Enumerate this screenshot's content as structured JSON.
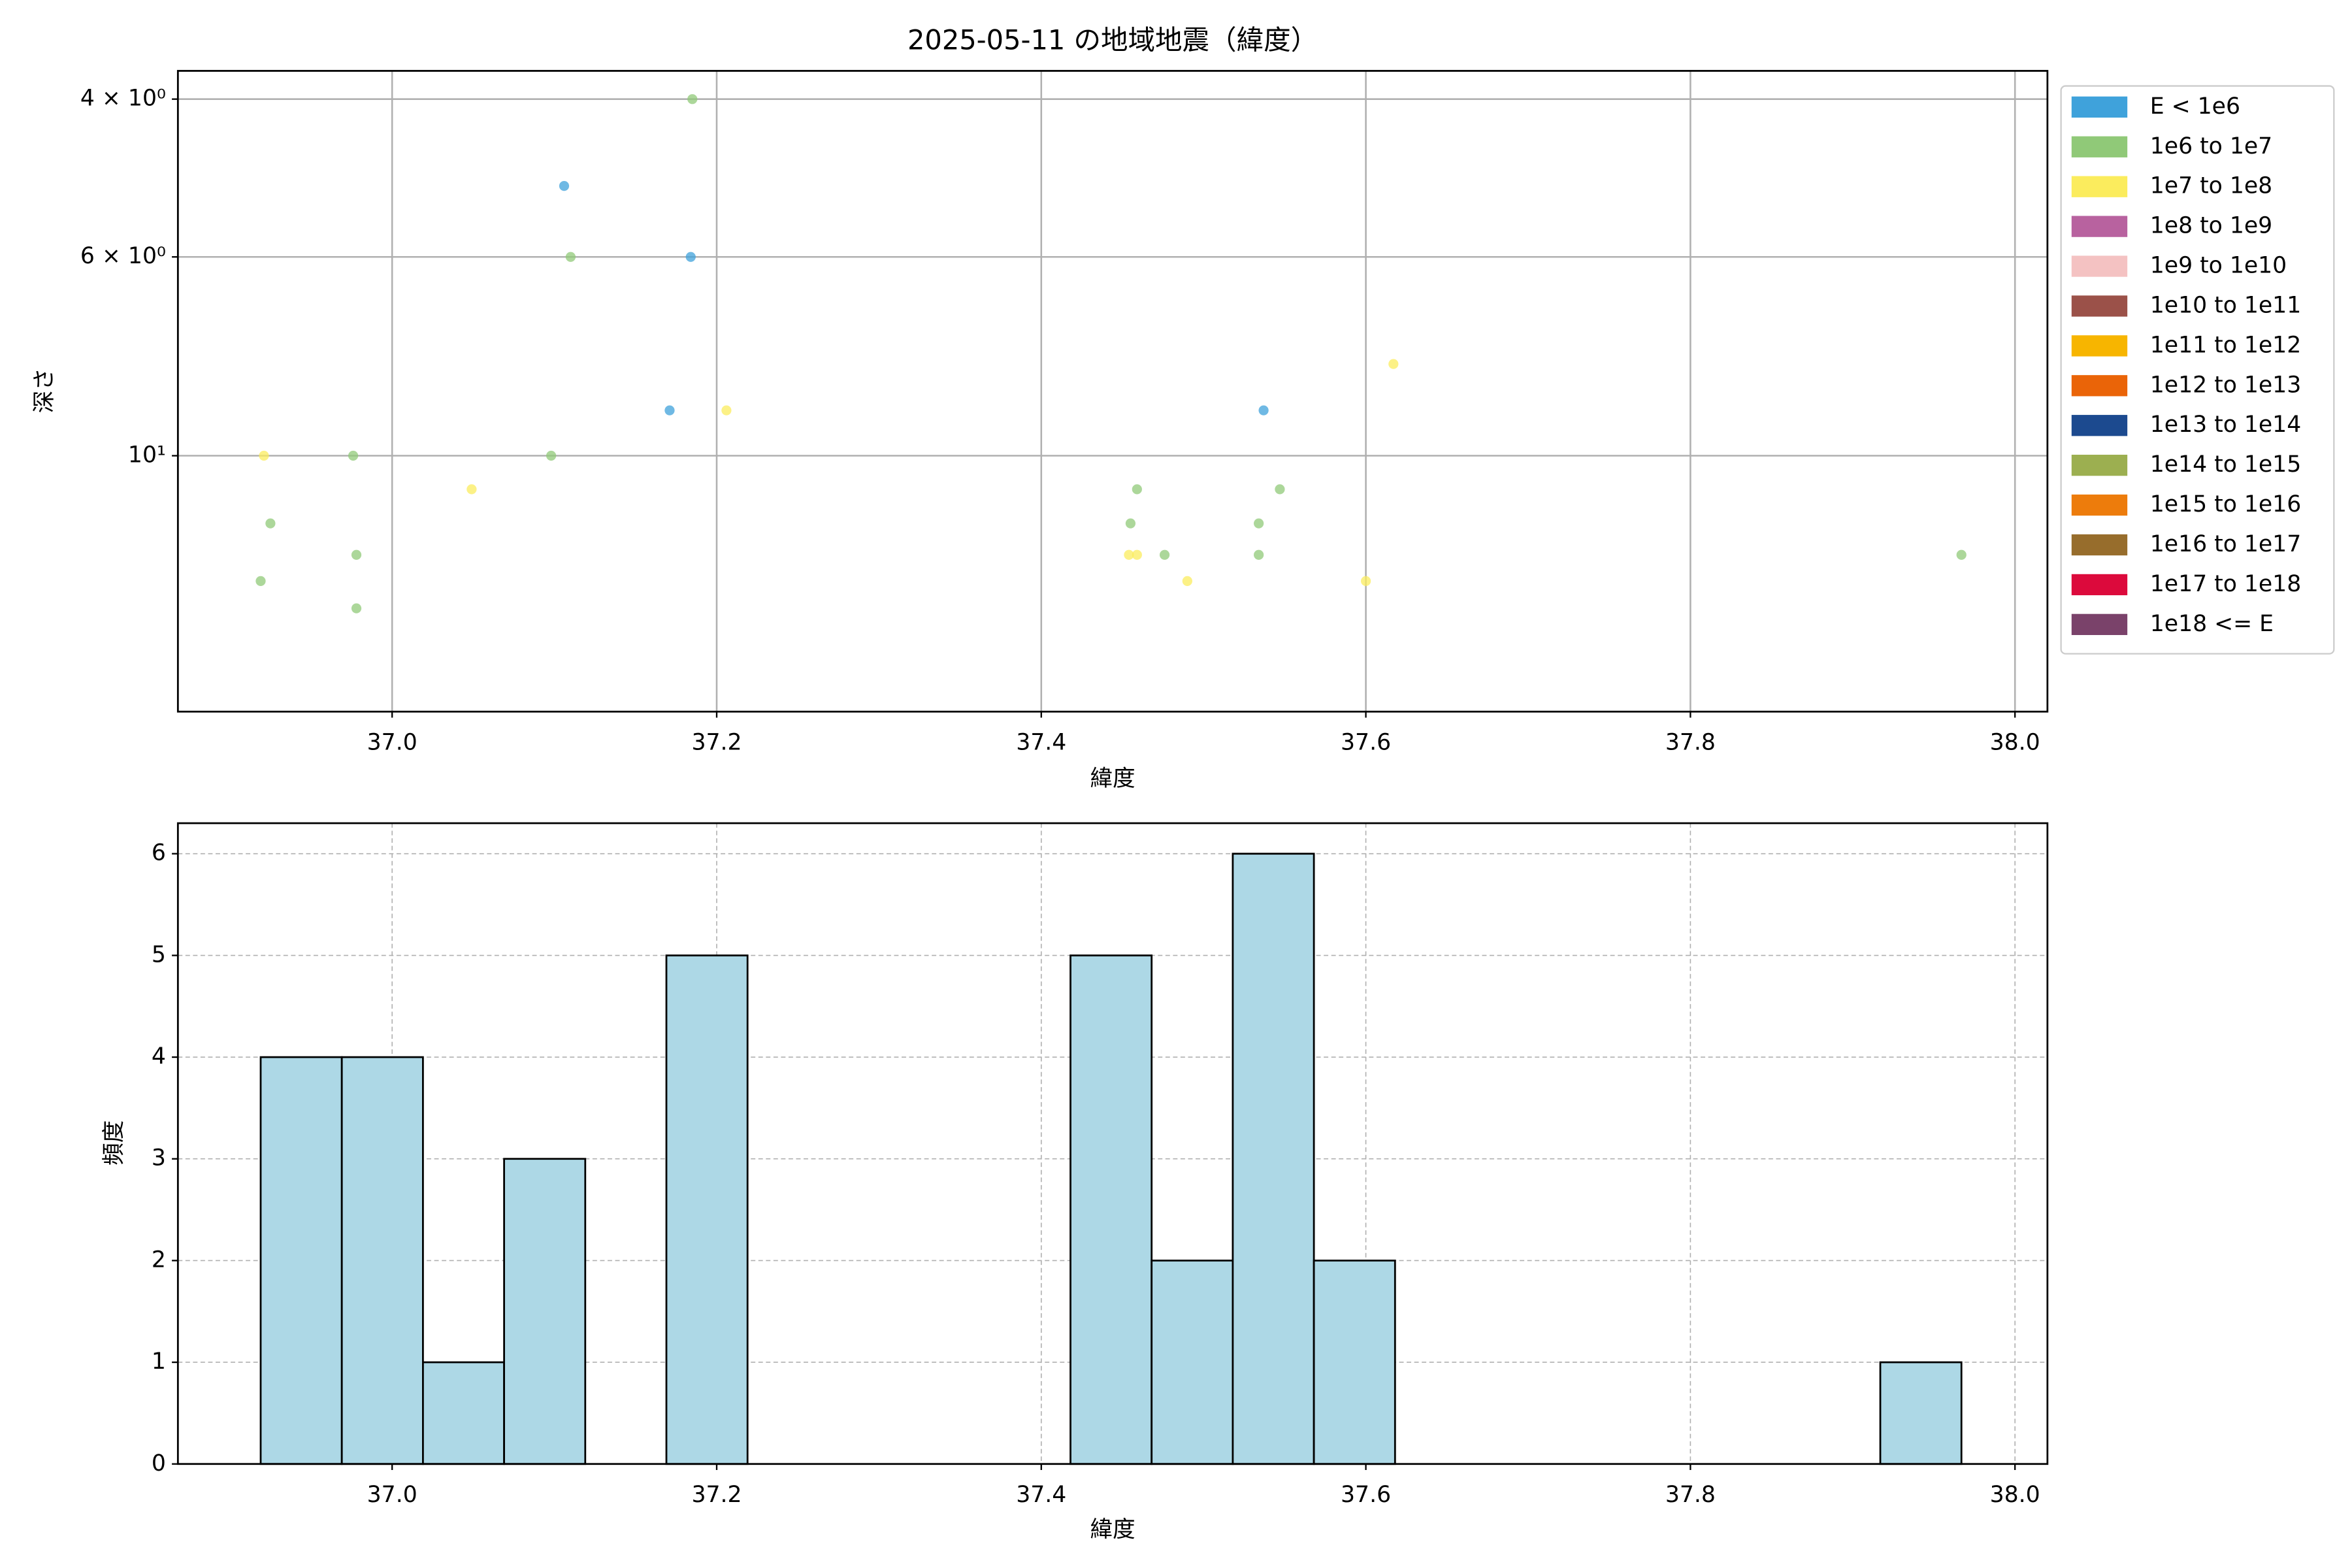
{
  "chart_data": [
    {
      "type": "scatter",
      "title": "2025-05-11 の地域地震（緯度）",
      "xlabel": "緯度",
      "ylabel": "深さ",
      "xlim": [
        36.868,
        38.02
      ],
      "ylim": [
        3.72,
        19.3
      ],
      "ylog": true,
      "y_inverted": true,
      "grid": true,
      "legend": "outside right",
      "xticks": [
        {
          "value": 37,
          "label": "37.0"
        },
        37.2,
        37.4,
        37.6,
        37.8,
        {
          "value": 38,
          "label": "38.0"
        }
      ],
      "yticks": [
        {
          "value": 4,
          "label": "4 × 10⁰"
        },
        {
          "value": 6,
          "label": "6 × 10⁰"
        },
        {
          "value": 10,
          "label": "10¹"
        }
      ],
      "series": [
        {
          "name": "E < 1e6",
          "color": "#3fa2db",
          "x": [
            37.106,
            37.171,
            37.184,
            37.537
          ],
          "values": [
            5.0,
            8.9,
            6,
            8.9
          ]
        },
        {
          "name": "1e6 to 1e7",
          "color": "#90c978",
          "x": [
            36.976,
            36.925,
            36.919,
            36.978,
            36.978,
            37.098,
            37.11,
            37.185,
            37.455,
            37.459,
            37.476,
            37.534,
            37.534,
            37.547,
            37.967
          ],
          "values": [
            10,
            11.9,
            13.8,
            12.9,
            14.8,
            10,
            6,
            4,
            11.9,
            10.9,
            12.9,
            11.9,
            12.9,
            10.9,
            12.9
          ]
        },
        {
          "name": "1e7 to 1e8",
          "color": "#fbec5d",
          "x": [
            36.921,
            37.049,
            37.206,
            37.454,
            37.459,
            37.49,
            37.6,
            37.617
          ],
          "values": [
            10,
            10.9,
            8.9,
            12.9,
            12.9,
            13.8,
            13.8,
            7.9
          ]
        },
        {
          "name": "1e8 to 1e9",
          "color": "#b8629f",
          "x": [],
          "values": []
        },
        {
          "name": "1e9 to 1e10",
          "color": "#f4c2c2",
          "x": [],
          "values": []
        },
        {
          "name": "1e10 to 1e11",
          "color": "#9b5149",
          "x": [],
          "values": []
        },
        {
          "name": "1e11 to 1e12",
          "color": "#f7b500",
          "x": [],
          "values": []
        },
        {
          "name": "1e12 to 1e13",
          "color": "#ea6408",
          "x": [],
          "values": []
        },
        {
          "name": "1e13 to 1e14",
          "color": "#1c4a8f",
          "x": [],
          "values": []
        },
        {
          "name": "1e14 to 1e15",
          "color": "#9caf50",
          "x": [],
          "values": []
        },
        {
          "name": "1e15 to 1e16",
          "color": "#ed7c0c",
          "x": [],
          "values": []
        },
        {
          "name": "1e16 to 1e17",
          "color": "#976d2c",
          "x": [],
          "values": []
        },
        {
          "name": "1e17 to 1e18",
          "color": "#dc0a3c",
          "x": [],
          "values": []
        },
        {
          "name": "1e18 <= E",
          "color": "#7a426a",
          "x": [],
          "values": []
        }
      ]
    },
    {
      "type": "histogram",
      "xlabel": "緯度",
      "ylabel": "頻度",
      "color": "#add8e6",
      "edgecolor": "#000000",
      "xlim": [
        36.868,
        38.02
      ],
      "ylim": [
        0,
        6.3
      ],
      "grid": true,
      "grid_style": "dashed",
      "xticks": [
        {
          "value": 37,
          "label": "37.0"
        },
        37.2,
        37.4,
        37.6,
        37.8,
        {
          "value": 38,
          "label": "38.0"
        }
      ],
      "yticks": [
        0,
        1,
        2,
        3,
        4,
        5,
        6
      ],
      "bins": [
        36.919,
        36.969,
        37.019,
        37.069,
        37.119,
        37.169,
        37.219,
        37.269,
        37.318,
        37.368,
        37.418,
        37.468,
        37.518,
        37.568,
        37.618,
        37.668,
        37.718,
        37.768,
        37.818,
        37.867,
        37.917,
        37.967
      ],
      "values": [
        4,
        4,
        1,
        3,
        0,
        5,
        0,
        0,
        0,
        0,
        5,
        2,
        6,
        2,
        0,
        0,
        0,
        0,
        0,
        0,
        1
      ]
    }
  ]
}
